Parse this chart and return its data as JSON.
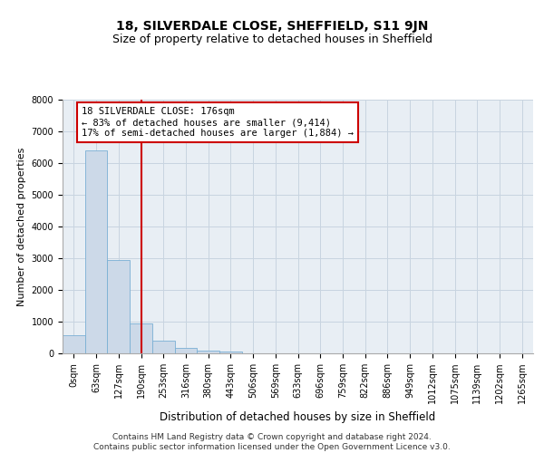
{
  "title1": "18, SILVERDALE CLOSE, SHEFFIELD, S11 9JN",
  "title2": "Size of property relative to detached houses in Sheffield",
  "xlabel": "Distribution of detached houses by size in Sheffield",
  "ylabel": "Number of detached properties",
  "categories": [
    "0sqm",
    "63sqm",
    "127sqm",
    "190sqm",
    "253sqm",
    "316sqm",
    "380sqm",
    "443sqm",
    "506sqm",
    "569sqm",
    "633sqm",
    "696sqm",
    "759sqm",
    "822sqm",
    "886sqm",
    "949sqm",
    "1012sqm",
    "1075sqm",
    "1139sqm",
    "1202sqm",
    "1265sqm"
  ],
  "values": [
    560,
    6400,
    2950,
    950,
    400,
    180,
    100,
    50,
    0,
    0,
    0,
    0,
    0,
    0,
    0,
    0,
    0,
    0,
    0,
    0,
    0
  ],
  "bar_color": "#ccd9e8",
  "bar_edge_color": "#7aafd4",
  "vline_color": "#cc0000",
  "vline_position": 3.0,
  "annotation_text": "18 SILVERDALE CLOSE: 176sqm\n← 83% of detached houses are smaller (9,414)\n17% of semi-detached houses are larger (1,884) →",
  "annotation_box_color": "#cc0000",
  "ylim": [
    0,
    8000
  ],
  "yticks": [
    0,
    1000,
    2000,
    3000,
    4000,
    5000,
    6000,
    7000,
    8000
  ],
  "grid_color": "#c8d4e0",
  "background_color": "#e8eef4",
  "footer_text": "Contains HM Land Registry data © Crown copyright and database right 2024.\nContains public sector information licensed under the Open Government Licence v3.0.",
  "title1_fontsize": 10,
  "title2_fontsize": 9,
  "xlabel_fontsize": 8.5,
  "ylabel_fontsize": 8,
  "annotation_fontsize": 7.5,
  "tick_fontsize": 7,
  "footer_fontsize": 6.5
}
